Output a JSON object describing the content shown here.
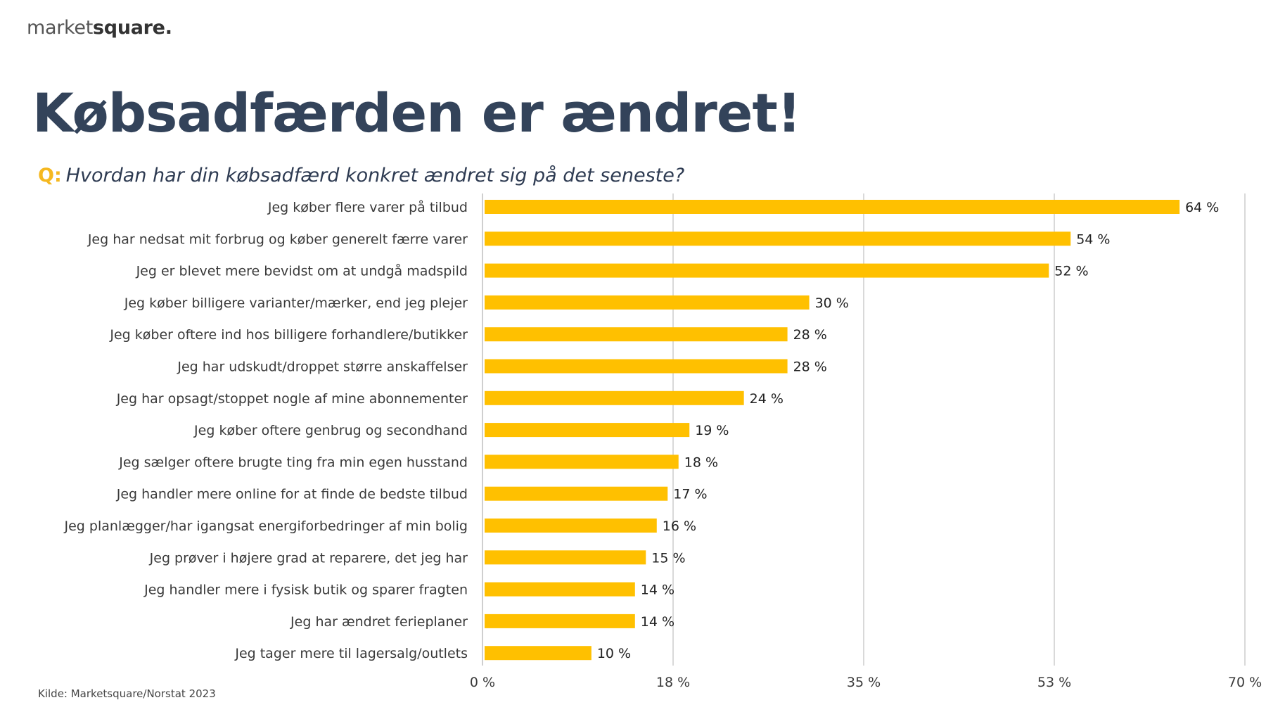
{
  "logo": {
    "light": "market",
    "bold": "square."
  },
  "header": {
    "title": "Købsadfærden er ændret!",
    "question_prefix": "Q:",
    "question": "Hvordan har din købsadfærd konkret ændret sig på det seneste?"
  },
  "footer": {
    "source": "Kilde: Marketsquare/Norstat 2023"
  },
  "colors": {
    "bar": "#FFC000",
    "title": "#33435A",
    "accent": "#F5B820",
    "grid": "#D9D9D9"
  },
  "chart_data": {
    "type": "bar",
    "orientation": "horizontal",
    "title": "Hvordan har din købsadfærd konkret ændret sig på det seneste?",
    "xlabel": "",
    "ylabel": "",
    "xlim": [
      0,
      70
    ],
    "grid": true,
    "legend": "none",
    "ticks": [
      0,
      17.5,
      35,
      52.5,
      70
    ],
    "tick_labels": [
      "0 %",
      "18 %",
      "35 %",
      "53 %",
      "70 %"
    ],
    "categories": [
      "Jeg køber flere varer på tilbud",
      "Jeg har nedsat mit forbrug og køber generelt færre varer",
      "Jeg er blevet mere bevidst om at undgå madspild",
      "Jeg køber billigere varianter/mærker, end jeg plejer",
      "Jeg køber oftere ind hos billigere forhandlere/butikker",
      "Jeg har udskudt/droppet større anskaffelser",
      "Jeg har opsagt/stoppet nogle af mine abonnementer",
      "Jeg køber oftere genbrug og secondhand",
      "Jeg sælger oftere brugte ting fra min egen husstand",
      "Jeg handler mere online for at finde de bedste tilbud",
      "Jeg planlægger/har igangsat energiforbedringer af min bolig",
      "Jeg prøver i højere grad at reparere, det jeg har",
      "Jeg handler mere i fysisk butik og sparer fragten",
      "Jeg har ændret ferieplaner",
      "Jeg tager mere til lagersalg/outlets"
    ],
    "values": [
      64,
      54,
      52,
      30,
      28,
      28,
      24,
      19,
      18,
      17,
      16,
      15,
      14,
      14,
      10
    ],
    "value_labels": [
      "64 %",
      "54 %",
      "52 %",
      "30 %",
      "28 %",
      "28 %",
      "24 %",
      "19 %",
      "18 %",
      "17 %",
      "16 %",
      "15 %",
      "14 %",
      "14 %",
      "10 %"
    ]
  }
}
